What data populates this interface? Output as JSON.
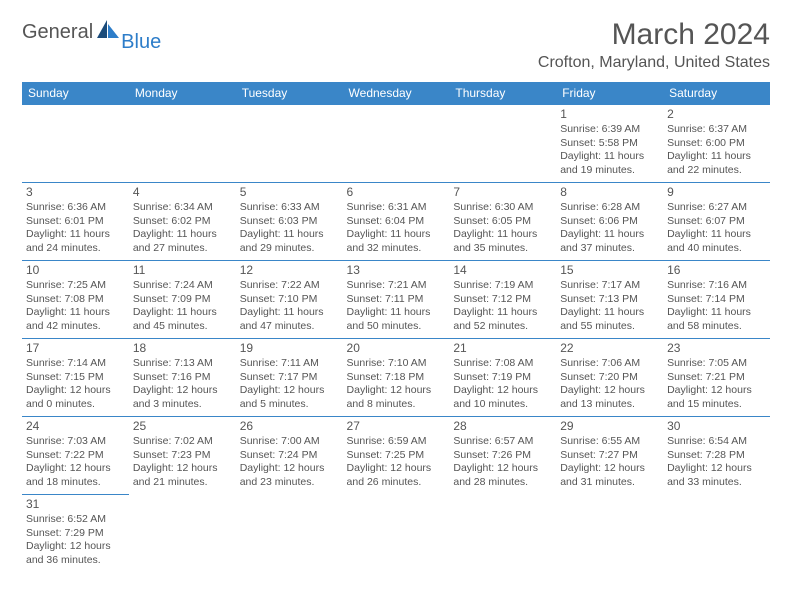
{
  "header": {
    "logo_general": "General",
    "logo_blue": "Blue",
    "month_title": "March 2024",
    "location": "Crofton, Maryland, United States"
  },
  "day_headers": [
    "Sunday",
    "Monday",
    "Tuesday",
    "Wednesday",
    "Thursday",
    "Friday",
    "Saturday"
  ],
  "colors": {
    "header_bg": "#3a86c8",
    "header_text": "#ffffff",
    "body_text": "#555555",
    "border": "#3a86c8",
    "logo_blue": "#2d7dc9",
    "logo_dark": "#1a4b7a"
  },
  "weeks": [
    [
      null,
      null,
      null,
      null,
      null,
      {
        "n": "1",
        "sr": "Sunrise: 6:39 AM",
        "ss": "Sunset: 5:58 PM",
        "d1": "Daylight: 11 hours",
        "d2": "and 19 minutes."
      },
      {
        "n": "2",
        "sr": "Sunrise: 6:37 AM",
        "ss": "Sunset: 6:00 PM",
        "d1": "Daylight: 11 hours",
        "d2": "and 22 minutes."
      }
    ],
    [
      {
        "n": "3",
        "sr": "Sunrise: 6:36 AM",
        "ss": "Sunset: 6:01 PM",
        "d1": "Daylight: 11 hours",
        "d2": "and 24 minutes."
      },
      {
        "n": "4",
        "sr": "Sunrise: 6:34 AM",
        "ss": "Sunset: 6:02 PM",
        "d1": "Daylight: 11 hours",
        "d2": "and 27 minutes."
      },
      {
        "n": "5",
        "sr": "Sunrise: 6:33 AM",
        "ss": "Sunset: 6:03 PM",
        "d1": "Daylight: 11 hours",
        "d2": "and 29 minutes."
      },
      {
        "n": "6",
        "sr": "Sunrise: 6:31 AM",
        "ss": "Sunset: 6:04 PM",
        "d1": "Daylight: 11 hours",
        "d2": "and 32 minutes."
      },
      {
        "n": "7",
        "sr": "Sunrise: 6:30 AM",
        "ss": "Sunset: 6:05 PM",
        "d1": "Daylight: 11 hours",
        "d2": "and 35 minutes."
      },
      {
        "n": "8",
        "sr": "Sunrise: 6:28 AM",
        "ss": "Sunset: 6:06 PM",
        "d1": "Daylight: 11 hours",
        "d2": "and 37 minutes."
      },
      {
        "n": "9",
        "sr": "Sunrise: 6:27 AM",
        "ss": "Sunset: 6:07 PM",
        "d1": "Daylight: 11 hours",
        "d2": "and 40 minutes."
      }
    ],
    [
      {
        "n": "10",
        "sr": "Sunrise: 7:25 AM",
        "ss": "Sunset: 7:08 PM",
        "d1": "Daylight: 11 hours",
        "d2": "and 42 minutes."
      },
      {
        "n": "11",
        "sr": "Sunrise: 7:24 AM",
        "ss": "Sunset: 7:09 PM",
        "d1": "Daylight: 11 hours",
        "d2": "and 45 minutes."
      },
      {
        "n": "12",
        "sr": "Sunrise: 7:22 AM",
        "ss": "Sunset: 7:10 PM",
        "d1": "Daylight: 11 hours",
        "d2": "and 47 minutes."
      },
      {
        "n": "13",
        "sr": "Sunrise: 7:21 AM",
        "ss": "Sunset: 7:11 PM",
        "d1": "Daylight: 11 hours",
        "d2": "and 50 minutes."
      },
      {
        "n": "14",
        "sr": "Sunrise: 7:19 AM",
        "ss": "Sunset: 7:12 PM",
        "d1": "Daylight: 11 hours",
        "d2": "and 52 minutes."
      },
      {
        "n": "15",
        "sr": "Sunrise: 7:17 AM",
        "ss": "Sunset: 7:13 PM",
        "d1": "Daylight: 11 hours",
        "d2": "and 55 minutes."
      },
      {
        "n": "16",
        "sr": "Sunrise: 7:16 AM",
        "ss": "Sunset: 7:14 PM",
        "d1": "Daylight: 11 hours",
        "d2": "and 58 minutes."
      }
    ],
    [
      {
        "n": "17",
        "sr": "Sunrise: 7:14 AM",
        "ss": "Sunset: 7:15 PM",
        "d1": "Daylight: 12 hours",
        "d2": "and 0 minutes."
      },
      {
        "n": "18",
        "sr": "Sunrise: 7:13 AM",
        "ss": "Sunset: 7:16 PM",
        "d1": "Daylight: 12 hours",
        "d2": "and 3 minutes."
      },
      {
        "n": "19",
        "sr": "Sunrise: 7:11 AM",
        "ss": "Sunset: 7:17 PM",
        "d1": "Daylight: 12 hours",
        "d2": "and 5 minutes."
      },
      {
        "n": "20",
        "sr": "Sunrise: 7:10 AM",
        "ss": "Sunset: 7:18 PM",
        "d1": "Daylight: 12 hours",
        "d2": "and 8 minutes."
      },
      {
        "n": "21",
        "sr": "Sunrise: 7:08 AM",
        "ss": "Sunset: 7:19 PM",
        "d1": "Daylight: 12 hours",
        "d2": "and 10 minutes."
      },
      {
        "n": "22",
        "sr": "Sunrise: 7:06 AM",
        "ss": "Sunset: 7:20 PM",
        "d1": "Daylight: 12 hours",
        "d2": "and 13 minutes."
      },
      {
        "n": "23",
        "sr": "Sunrise: 7:05 AM",
        "ss": "Sunset: 7:21 PM",
        "d1": "Daylight: 12 hours",
        "d2": "and 15 minutes."
      }
    ],
    [
      {
        "n": "24",
        "sr": "Sunrise: 7:03 AM",
        "ss": "Sunset: 7:22 PM",
        "d1": "Daylight: 12 hours",
        "d2": "and 18 minutes."
      },
      {
        "n": "25",
        "sr": "Sunrise: 7:02 AM",
        "ss": "Sunset: 7:23 PM",
        "d1": "Daylight: 12 hours",
        "d2": "and 21 minutes."
      },
      {
        "n": "26",
        "sr": "Sunrise: 7:00 AM",
        "ss": "Sunset: 7:24 PM",
        "d1": "Daylight: 12 hours",
        "d2": "and 23 minutes."
      },
      {
        "n": "27",
        "sr": "Sunrise: 6:59 AM",
        "ss": "Sunset: 7:25 PM",
        "d1": "Daylight: 12 hours",
        "d2": "and 26 minutes."
      },
      {
        "n": "28",
        "sr": "Sunrise: 6:57 AM",
        "ss": "Sunset: 7:26 PM",
        "d1": "Daylight: 12 hours",
        "d2": "and 28 minutes."
      },
      {
        "n": "29",
        "sr": "Sunrise: 6:55 AM",
        "ss": "Sunset: 7:27 PM",
        "d1": "Daylight: 12 hours",
        "d2": "and 31 minutes."
      },
      {
        "n": "30",
        "sr": "Sunrise: 6:54 AM",
        "ss": "Sunset: 7:28 PM",
        "d1": "Daylight: 12 hours",
        "d2": "and 33 minutes."
      }
    ],
    [
      {
        "n": "31",
        "sr": "Sunrise: 6:52 AM",
        "ss": "Sunset: 7:29 PM",
        "d1": "Daylight: 12 hours",
        "d2": "and 36 minutes."
      },
      null,
      null,
      null,
      null,
      null,
      null
    ]
  ]
}
